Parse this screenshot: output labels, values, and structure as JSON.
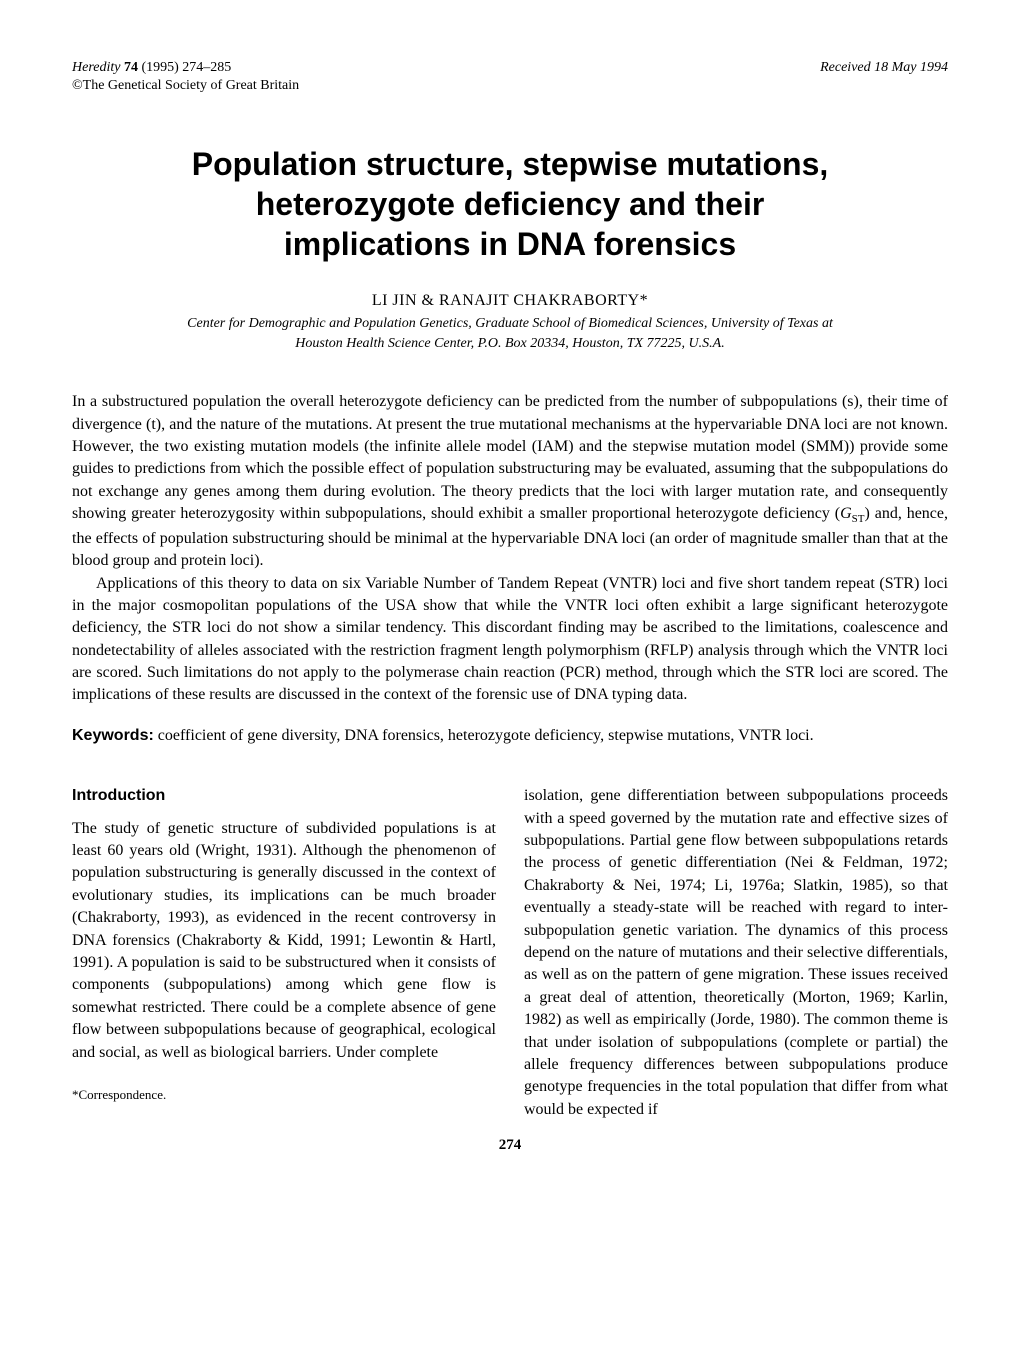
{
  "header": {
    "journal": "Heredity",
    "volume": "74",
    "year_pages": "(1995) 274–285",
    "received": "Received 18 May 1994",
    "copyright": "©The Genetical Society of Great Britain"
  },
  "title_lines": [
    "Population structure, stepwise mutations,",
    "heterozygote deficiency and their",
    "implications in DNA forensics"
  ],
  "authors": "LI JIN & RANAJIT CHAKRABORTY*",
  "affiliation_lines": [
    "Center for Demographic and Population Genetics, Graduate School of Biomedical Sciences, University of Texas at",
    "Houston Health Science Center, P.O. Box 20334, Houston, TX 77225, U.S.A."
  ],
  "abstract": {
    "p1_a": "In a substructured population the overall heterozygote deficiency can be predicted from the number of subpopulations (s), their time of divergence (t), and the nature of the mutations. At present the true mutational mechanisms at the hypervariable DNA loci are not known. However, the two existing mutation models (the infinite allele model (IAM) and the stepwise mutation model (SMM)) provide some guides to predictions from which the possible effect of population substructuring may be evaluated, assuming that the subpopulations do not exchange any genes among them during evolution. The theory predicts that the loci with larger mutation rate, and consequently showing greater heterozygosity within subpopulations, should exhibit a smaller proportional heterozygote deficiency (",
    "p1_b": ") and, hence, the effects of population substructuring should be minimal at the hypervariable DNA loci (an order of magnitude smaller than that at the blood group and protein loci).",
    "p2": "Applications of this theory to data on six Variable Number of Tandem Repeat (VNTR) loci and five short tandem repeat (STR) loci in the major cosmopolitan populations of the USA show that while the VNTR loci often exhibit a large significant heterozygote deficiency, the STR loci do not show a similar tendency. This discordant finding may be ascribed to the limitations, coalescence and nondetectability of alleles associated with the restriction fragment length polymorphism (RFLP) analysis through which the VNTR loci are scored. Such limitations do not apply to the polymerase chain reaction (PCR) method, through which the STR loci are scored. The implications of these results are discussed in the context of the forensic use of DNA typing data."
  },
  "keywords": {
    "label": "Keywords:",
    "text": "coefficient of gene diversity, DNA forensics, heterozygote deficiency, stepwise mutations, VNTR loci."
  },
  "intro": {
    "heading": "Introduction",
    "col1": "The study of genetic structure of subdivided populations is at least 60 years old (Wright, 1931). Although the phenomenon of population substructuring is generally discussed in the context of evolutionary studies, its implications can be much broader (Chakraborty, 1993), as evidenced in the recent controversy in DNA forensics (Chakraborty & Kidd, 1991; Lewontin & Hartl, 1991). A population is said to be substructured when it consists of components (subpopulations) among which gene flow is somewhat restricted. There could be a complete absence of gene flow between subpopulations because of geographical, ecological and social, as well as biological barriers. Under complete",
    "col2": "isolation, gene differentiation between subpopulations proceeds with a speed governed by the mutation rate and effective sizes of subpopulations. Partial gene flow between subpopulations retards the process of genetic differentiation (Nei & Feldman, 1972; Chakraborty & Nei, 1974; Li, 1976a; Slatkin, 1985), so that eventually a steady-state will be reached with regard to inter-subpopulation genetic variation. The dynamics of this process depend on the nature of mutations and their selective differentials, as well as on the pattern of gene migration. These issues received a great deal of attention, theoretically (Morton, 1969; Karlin, 1982) as well as empirically (Jorde, 1980). The common theme is that under isolation of subpopulations (complete or partial) the allele frequency differences between subpopulations produce genotype frequencies in the total population that differ from what would be expected if"
  },
  "footnote": "*Correspondence.",
  "page_number": "274"
}
